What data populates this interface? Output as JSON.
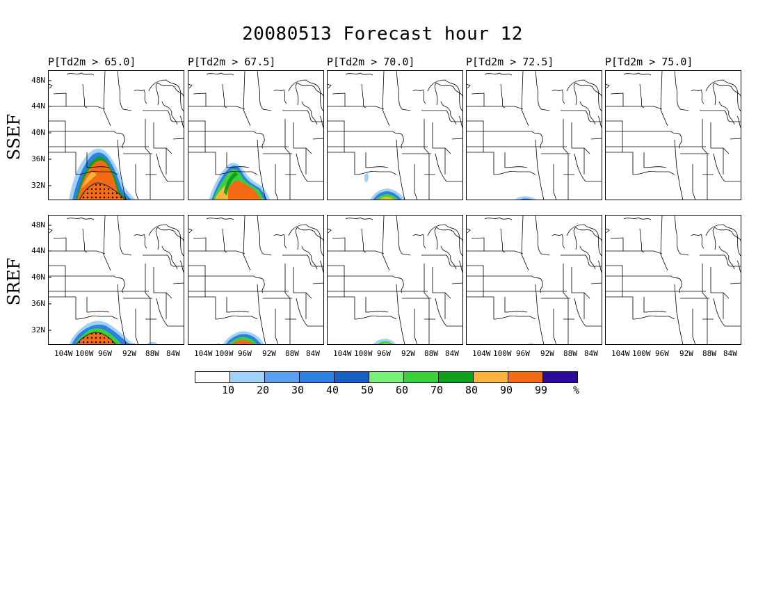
{
  "title": "20080513 Forecast hour 12",
  "rows": [
    {
      "label": "SSEF"
    },
    {
      "label": "SREF"
    }
  ],
  "columns": [
    {
      "title": "P[Td2m > 65.0]"
    },
    {
      "title": "P[Td2m > 67.5]"
    },
    {
      "title": "P[Td2m > 70.0]"
    },
    {
      "title": "P[Td2m > 72.5]"
    },
    {
      "title": "P[Td2m > 75.0]"
    }
  ],
  "axes": {
    "lat_labels": [
      "48N",
      "44N",
      "40N",
      "36N",
      "32N"
    ],
    "lon_labels": [
      "104W",
      "100W",
      "96W",
      "92W",
      "88W",
      "84W"
    ]
  },
  "colorbar": {
    "colors": [
      "#ffffff",
      "#a0d2fa",
      "#5aa0f0",
      "#2e80e6",
      "#1860c8",
      "#78f078",
      "#37d23c",
      "#0fa01e",
      "#fab43c",
      "#f56a14",
      "#2d0a9b"
    ],
    "labels": [
      "10",
      "20",
      "30",
      "40",
      "50",
      "60",
      "70",
      "80",
      "90",
      "99",
      "%"
    ]
  },
  "chart_data": {
    "type": "heatmap",
    "variable": "Td2m",
    "thresholds": [
      65.0,
      67.5,
      70.0,
      72.5,
      75.0
    ],
    "models": [
      "SSEF",
      "SREF"
    ],
    "levels_percent": [
      10,
      20,
      30,
      40,
      50,
      60,
      70,
      80,
      90,
      99
    ]
  }
}
